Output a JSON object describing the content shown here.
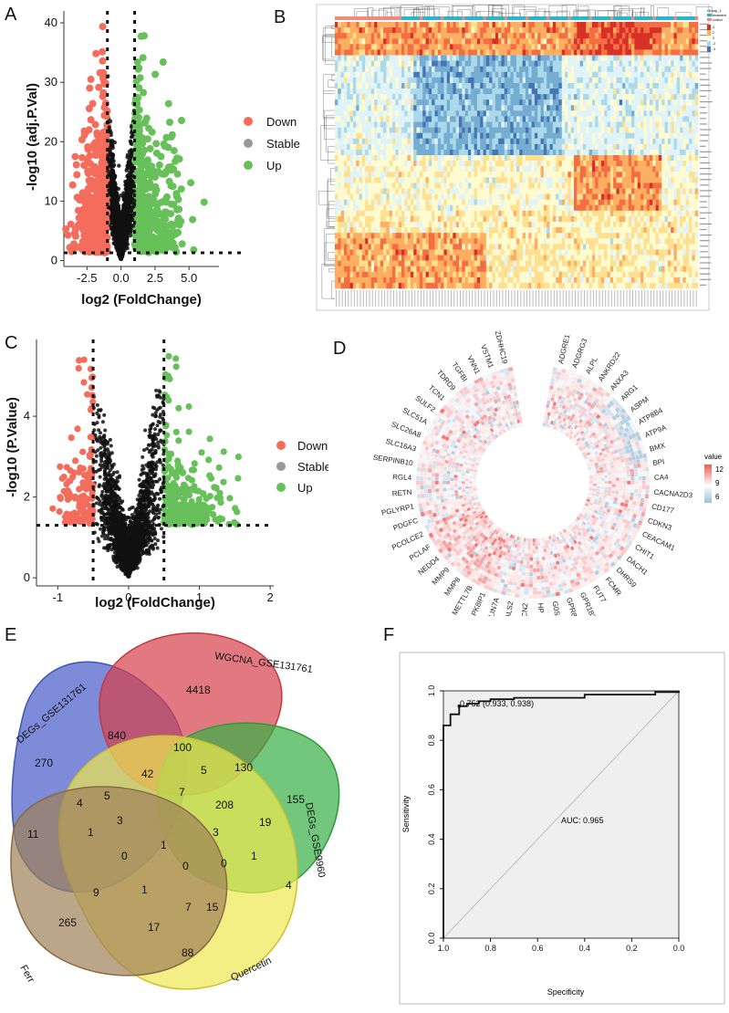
{
  "panelA": {
    "label": "A",
    "chart_data": {
      "type": "scatter",
      "title": "",
      "xlabel": "log2 (FoldChange)",
      "ylabel": "-log10 (adj.P.Val)",
      "xticks": [
        "-2.5",
        "0.0",
        "2.5",
        "5.0"
      ],
      "yticks": [
        "0",
        "10",
        "20",
        "30",
        "40"
      ],
      "xlim": [
        -4.2,
        7.2
      ],
      "ylim": [
        -1,
        42
      ],
      "thresholds": {
        "fc": [
          -1,
          1
        ],
        "p": 1.3
      },
      "legend": [
        {
          "name": "Down",
          "color": "#f36c5c"
        },
        {
          "name": "Stable",
          "color": "#999999"
        },
        {
          "name": "Up",
          "color": "#67c05a"
        }
      ]
    }
  },
  "panelB": {
    "label": "B",
    "legend_title": "Group_1",
    "legend_items": [
      "treatment",
      "control"
    ],
    "scale": [
      "4",
      "2",
      "0",
      "-2",
      "-4"
    ]
  },
  "panelC": {
    "label": "C",
    "chart_data": {
      "type": "scatter",
      "title": "",
      "xlabel": "log2 (FoldChange)",
      "ylabel": "-log10 (P.Value)",
      "xticks": [
        "-1",
        "0",
        "1",
        "2"
      ],
      "yticks": [
        "0",
        "2",
        "4"
      ],
      "xlim": [
        -1.3,
        2.05
      ],
      "ylim": [
        -0.2,
        5.9
      ],
      "thresholds": {
        "fc": [
          -0.5,
          0.5
        ],
        "p": 1.3
      },
      "legend": [
        {
          "name": "Down",
          "color": "#f36c5c"
        },
        {
          "name": "Stable",
          "color": "#999999"
        },
        {
          "name": "Up",
          "color": "#67c05a"
        }
      ]
    }
  },
  "panelD": {
    "label": "D",
    "legend_title": "value",
    "legend_ticks": [
      "12",
      "9",
      "6"
    ],
    "genes": [
      "ADGRE1",
      "ADGRG3",
      "ALPL",
      "ANKRD22",
      "ANXA3",
      "ARG1",
      "ASPM",
      "ATP8B4",
      "ATP9A",
      "BMX",
      "BPI",
      "CA4",
      "CACNA2D3",
      "CD177",
      "CDKN3",
      "CEACAM1",
      "CHIT1",
      "DACH1",
      "DHRS9",
      "FCMR",
      "FUT7",
      "GPR183",
      "GPR84",
      "G0S2",
      "HP",
      "LCN2",
      "LGALS2",
      "LIN7A",
      "MAPK8IP1",
      "METTL7B",
      "MMP8",
      "MMP9",
      "NEDD4",
      "PCLAF",
      "PCOLCE2",
      "PDGFC",
      "PGLYRP1",
      "RETN",
      "RGL4",
      "SERPINB10",
      "SLC16A3",
      "SLC26A8",
      "SLC51A",
      "SULF2",
      "TCN1",
      "TDRD9",
      "TGFBI",
      "VNN1",
      "VSTM1",
      "ZDHHC19"
    ]
  },
  "panelE": {
    "label": "E",
    "sets": [
      "DEGs_GSE131761",
      "WGCNA_GSE131761",
      "DEGs_GSE9960",
      "Quercetin",
      "Ferr"
    ],
    "counts": [
      "270",
      "840",
      "4418",
      "100",
      "42",
      "5",
      "130",
      "155",
      "208",
      "19",
      "5",
      "7",
      "4",
      "3",
      "1",
      "3",
      "1",
      "11",
      "0",
      "1",
      "0",
      "0",
      "4",
      "9",
      "1",
      "7",
      "15",
      "265",
      "17",
      "88"
    ]
  },
  "panelF": {
    "label": "F",
    "chart_data": {
      "type": "line",
      "title": "",
      "xlabel": "Specificity",
      "ylabel": "Sensitivity",
      "xticks": [
        "1.0",
        "0.8",
        "0.6",
        "0.4",
        "0.2",
        "0.0"
      ],
      "yticks": [
        "0.0",
        "0.2",
        "0.4",
        "0.6",
        "0.8",
        "1.0"
      ],
      "xlim": [
        1.0,
        0.0
      ],
      "ylim": [
        0.0,
        1.0
      ],
      "auc_label": "AUC: 0.965",
      "threshold_label": "0.752 (0.933, 0.938)",
      "roc_curve": {
        "specificity": [
          1.0,
          1.0,
          0.97,
          0.97,
          0.933,
          0.933,
          0.9,
          0.9,
          0.85,
          0.85,
          0.8,
          0.8,
          0.7,
          0.7,
          0.4,
          0.4,
          0.1,
          0.1,
          0.0,
          0.0
        ],
        "sensitivity": [
          0.0,
          0.86,
          0.86,
          0.905,
          0.905,
          0.938,
          0.938,
          0.948,
          0.948,
          0.958,
          0.958,
          0.966,
          0.966,
          0.972,
          0.972,
          0.985,
          0.985,
          0.995,
          0.995,
          1.0
        ]
      }
    }
  }
}
